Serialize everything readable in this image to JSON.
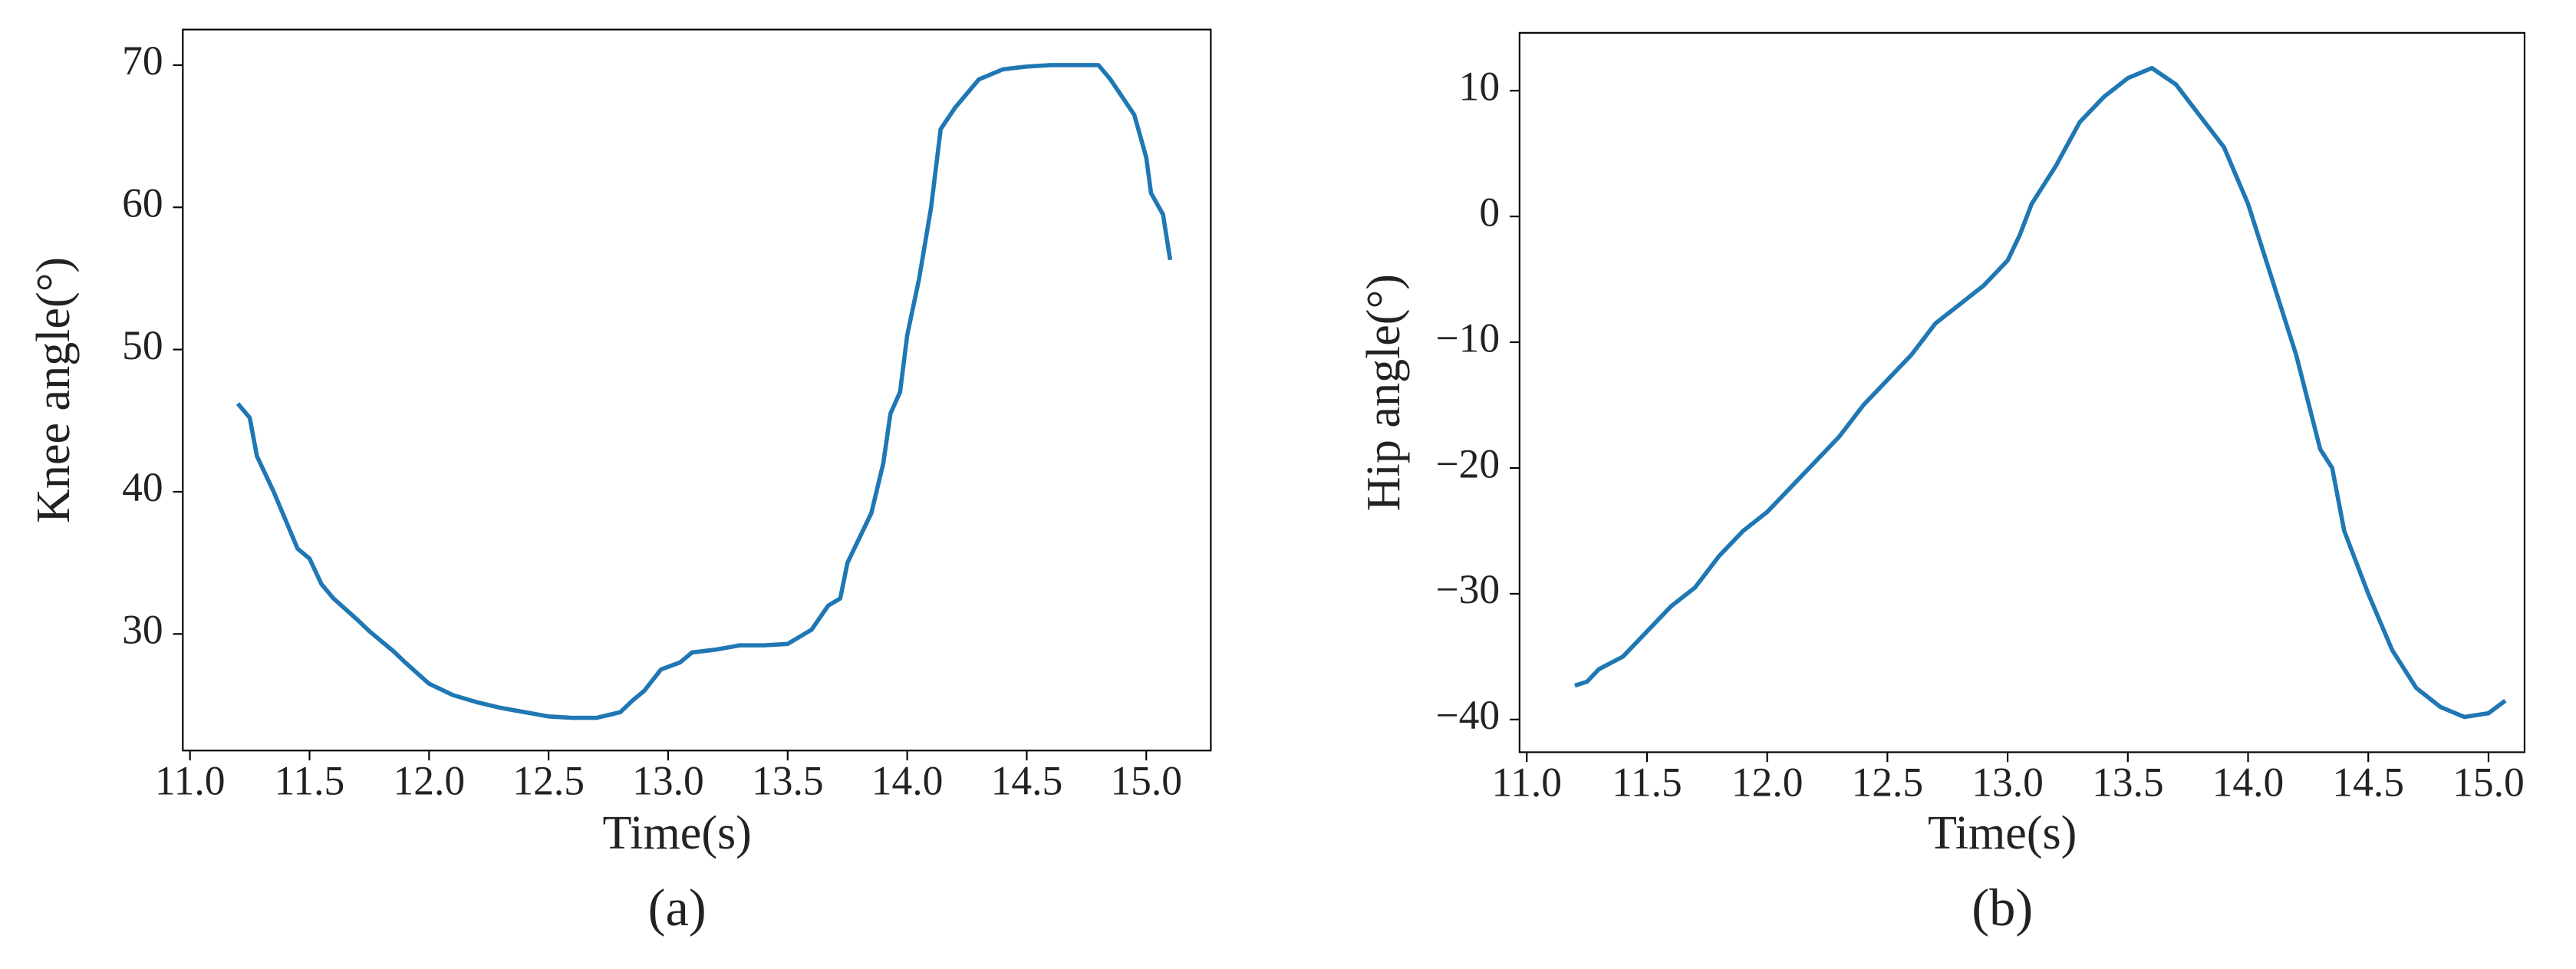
{
  "chart_data": [
    {
      "type": "line",
      "caption": "(a)",
      "x_label": "Time(s)",
      "y_label": "Knee angle(°)",
      "color": "#1f77b4",
      "x": [
        11.2,
        11.25,
        11.28,
        11.35,
        11.4,
        11.45,
        11.5,
        11.55,
        11.6,
        11.7,
        11.75,
        11.85,
        11.9,
        12.0,
        12.1,
        12.2,
        12.3,
        12.4,
        12.5,
        12.6,
        12.7,
        12.8,
        12.85,
        12.9,
        12.97,
        13.05,
        13.1,
        13.2,
        13.3,
        13.4,
        13.5,
        13.6,
        13.67,
        13.72,
        13.75,
        13.85,
        13.9,
        13.93,
        13.97,
        14.0,
        14.05,
        14.1,
        14.14,
        14.2,
        14.3,
        14.4,
        14.5,
        14.6,
        14.7,
        14.8,
        14.85,
        14.95,
        15.0,
        15.02,
        15.07,
        15.1
      ],
      "values": [
        46.2,
        45.2,
        42.5,
        40,
        38,
        36,
        35.3,
        33.5,
        32.5,
        31,
        30.2,
        28.8,
        28,
        26.5,
        25.7,
        25.2,
        24.8,
        24.5,
        24.2,
        24.1,
        24.1,
        24.5,
        25.3,
        26,
        27.5,
        28,
        28.7,
        28.9,
        29.2,
        29.2,
        29.3,
        30.3,
        32,
        32.5,
        35,
        38.5,
        42,
        45.5,
        47,
        51,
        55,
        60,
        65.5,
        67,
        69,
        69.7,
        69.9,
        70,
        70,
        70,
        69,
        66.5,
        63.5,
        61,
        59.5,
        56.3
      ],
      "xlim": [
        10.97,
        15.27
      ],
      "ylim": [
        21.8,
        72.5
      ],
      "xticks": [
        {
          "value": 11,
          "label": "11.0"
        },
        11.5,
        {
          "value": 12,
          "label": "12.0"
        },
        12.5,
        {
          "value": 13,
          "label": "13.0"
        },
        13.5,
        {
          "value": 14,
          "label": "14.0"
        },
        14.5,
        {
          "value": 15,
          "label": "15.0"
        }
      ],
      "yticks": [
        30,
        40,
        50,
        60,
        70
      ]
    },
    {
      "type": "line",
      "caption": "(b)",
      "x_label": "Time(s)",
      "y_label": "Hip angle(°)",
      "color": "#1f77b4",
      "x": [
        11.2,
        11.25,
        11.3,
        11.4,
        11.5,
        11.6,
        11.7,
        11.8,
        11.9,
        12.0,
        12.1,
        12.2,
        12.3,
        12.4,
        12.5,
        12.6,
        12.7,
        12.8,
        12.9,
        13.0,
        13.05,
        13.1,
        13.2,
        13.3,
        13.4,
        13.5,
        13.6,
        13.7,
        13.8,
        13.9,
        14.0,
        14.1,
        14.2,
        14.3,
        14.35,
        14.4,
        14.5,
        14.6,
        14.7,
        14.8,
        14.9,
        15.0,
        15.07
      ],
      "values": [
        -37.3,
        -37,
        -36,
        -35,
        -33,
        -31,
        -29.5,
        -27,
        -25,
        -23.5,
        -21.5,
        -19.5,
        -17.5,
        -15,
        -13,
        -11,
        -8.5,
        -7,
        -5.5,
        -3.5,
        -1.5,
        1,
        4,
        7.5,
        9.5,
        11,
        11.8,
        10.5,
        8,
        5.5,
        1,
        -5,
        -11,
        -18.5,
        -20,
        -25,
        -30,
        -34.5,
        -37.5,
        -39,
        -39.8,
        -39.5,
        -38.5
      ],
      "xlim": [
        10.97,
        15.15
      ],
      "ylim": [
        -42.6,
        14.6
      ],
      "xticks": [
        {
          "value": 11,
          "label": "11.0"
        },
        11.5,
        {
          "value": 12,
          "label": "12.0"
        },
        12.5,
        {
          "value": 13,
          "label": "13.0"
        },
        13.5,
        {
          "value": 14,
          "label": "14.0"
        },
        14.5,
        {
          "value": 15,
          "label": "15.0"
        }
      ],
      "yticks": [
        {
          "value": -40,
          "label": "−40"
        },
        {
          "value": -30,
          "label": "−30"
        },
        {
          "value": -20,
          "label": "−20"
        },
        {
          "value": -10,
          "label": "−10"
        },
        0,
        10
      ]
    }
  ]
}
